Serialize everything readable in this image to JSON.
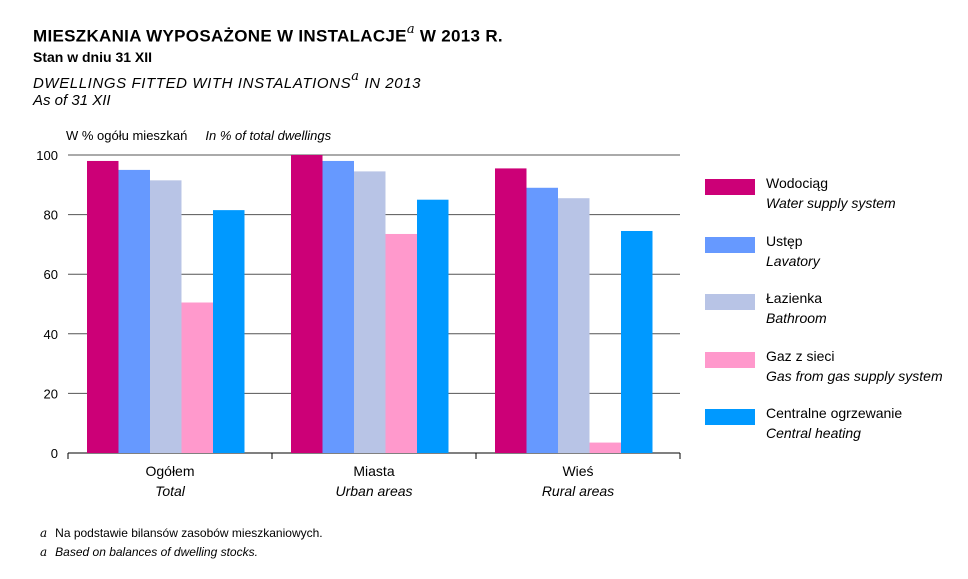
{
  "title": {
    "pl": "MIESZKANIA WYPOSAŻONE W INSTALACJE",
    "pl_year": "W 2013 R.",
    "pl_sub": "Stan w dniu 31 XII",
    "en": "DWELLINGS FITTED WITH INSTALATIONS",
    "en_year": "IN 2013",
    "en_sub": "As of 31 XII",
    "footnote_mark": "a"
  },
  "unit": {
    "pl": "W % ogółu mieszkań",
    "en": "In % of total dwellings"
  },
  "footnotes": [
    {
      "mark": "a",
      "text": "Na podstawie bilansów zasobów mieszkaniowych."
    },
    {
      "mark": "a",
      "text": "Based on balances of dwelling stocks."
    }
  ],
  "chart_data": {
    "type": "bar",
    "categories": [
      {
        "pl": "Ogółem",
        "en": "Total"
      },
      {
        "pl": "Miasta",
        "en": "Urban areas"
      },
      {
        "pl": "Wieś",
        "en": "Rural areas"
      }
    ],
    "series": [
      {
        "name": "Wodociąg",
        "name_en": "Water supply system",
        "color": "#cc0077",
        "values": [
          98,
          100,
          95.5
        ]
      },
      {
        "name": "Ustęp",
        "name_en": "Lavatory",
        "color": "#6699ff",
        "values": [
          95,
          98,
          89
        ]
      },
      {
        "name": "Łazienka",
        "name_en": "Bathroom",
        "color": "#b8c4e6",
        "values": [
          91.5,
          94.5,
          85.5
        ]
      },
      {
        "name": "Gaz z sieci",
        "name_en": "Gas from gas supply system",
        "color": "#ff99cc",
        "values": [
          50.5,
          73.5,
          3.5
        ]
      },
      {
        "name": "Centralne ogrzewanie",
        "name_en": "Central heating",
        "color": "#0099ff",
        "values": [
          81.5,
          85,
          74.5
        ]
      }
    ],
    "ylim": [
      0,
      100
    ],
    "yticks": [
      "0",
      "20",
      "40",
      "60",
      "80",
      "100"
    ],
    "grid": true,
    "legend_position": "right"
  }
}
